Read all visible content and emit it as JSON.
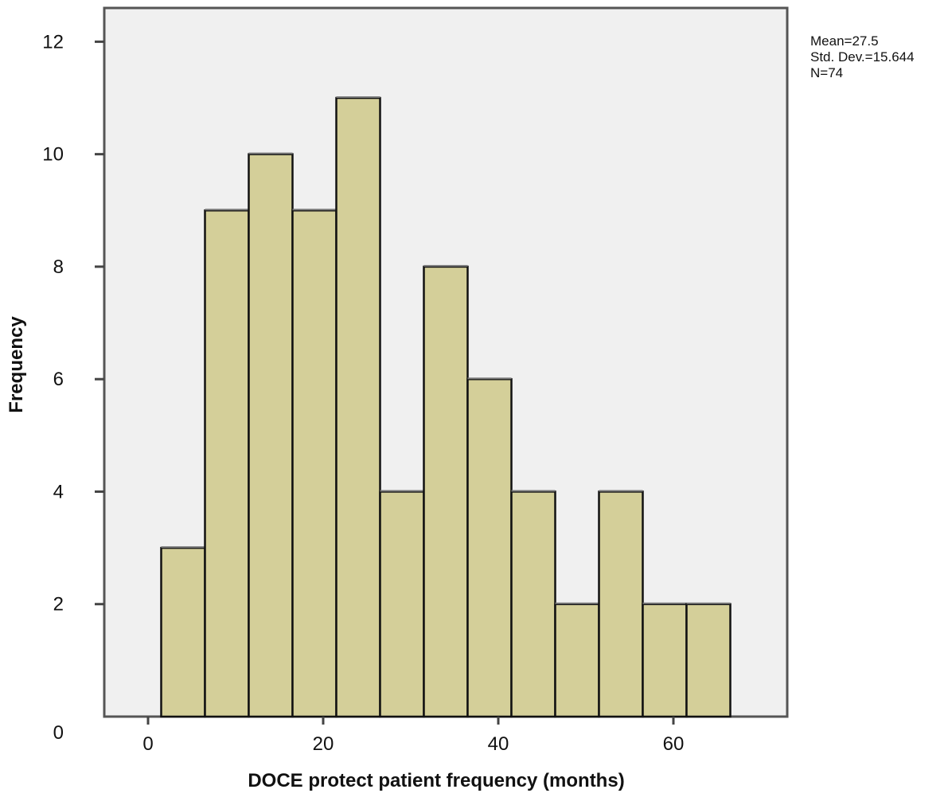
{
  "chart_data": {
    "type": "bar",
    "chart_subtype": "histogram",
    "xlabel": "DOCE protect patient frequency (months)",
    "ylabel": "Frequency",
    "xlim": [
      -5,
      73
    ],
    "ylim": [
      0,
      12.6
    ],
    "x_ticks": [
      0,
      20,
      40,
      60
    ],
    "y_ticks": [
      0,
      2,
      4,
      6,
      8,
      10,
      12
    ],
    "bin_width": 5,
    "bins": [
      {
        "start": 1.5,
        "end": 6.5,
        "count": 3
      },
      {
        "start": 6.5,
        "end": 11.5,
        "count": 9
      },
      {
        "start": 11.5,
        "end": 16.5,
        "count": 10
      },
      {
        "start": 16.5,
        "end": 21.5,
        "count": 9
      },
      {
        "start": 21.5,
        "end": 26.5,
        "count": 11
      },
      {
        "start": 26.5,
        "end": 31.5,
        "count": 4
      },
      {
        "start": 31.5,
        "end": 36.5,
        "count": 8
      },
      {
        "start": 36.5,
        "end": 41.5,
        "count": 6
      },
      {
        "start": 41.5,
        "end": 46.5,
        "count": 4
      },
      {
        "start": 46.5,
        "end": 51.5,
        "count": 2
      },
      {
        "start": 51.5,
        "end": 56.5,
        "count": 4
      },
      {
        "start": 56.5,
        "end": 61.5,
        "count": 2
      },
      {
        "start": 61.5,
        "end": 66.5,
        "count": 2
      }
    ],
    "bar_color": "#d4cf99",
    "bar_edge_color": "#111111",
    "plot_background": "#f0f0f0",
    "grid": false,
    "legend": "none"
  },
  "stats": {
    "mean": "Mean=27.5",
    "std_dev": "Std. Dev.=15.644",
    "n": "N=74"
  }
}
